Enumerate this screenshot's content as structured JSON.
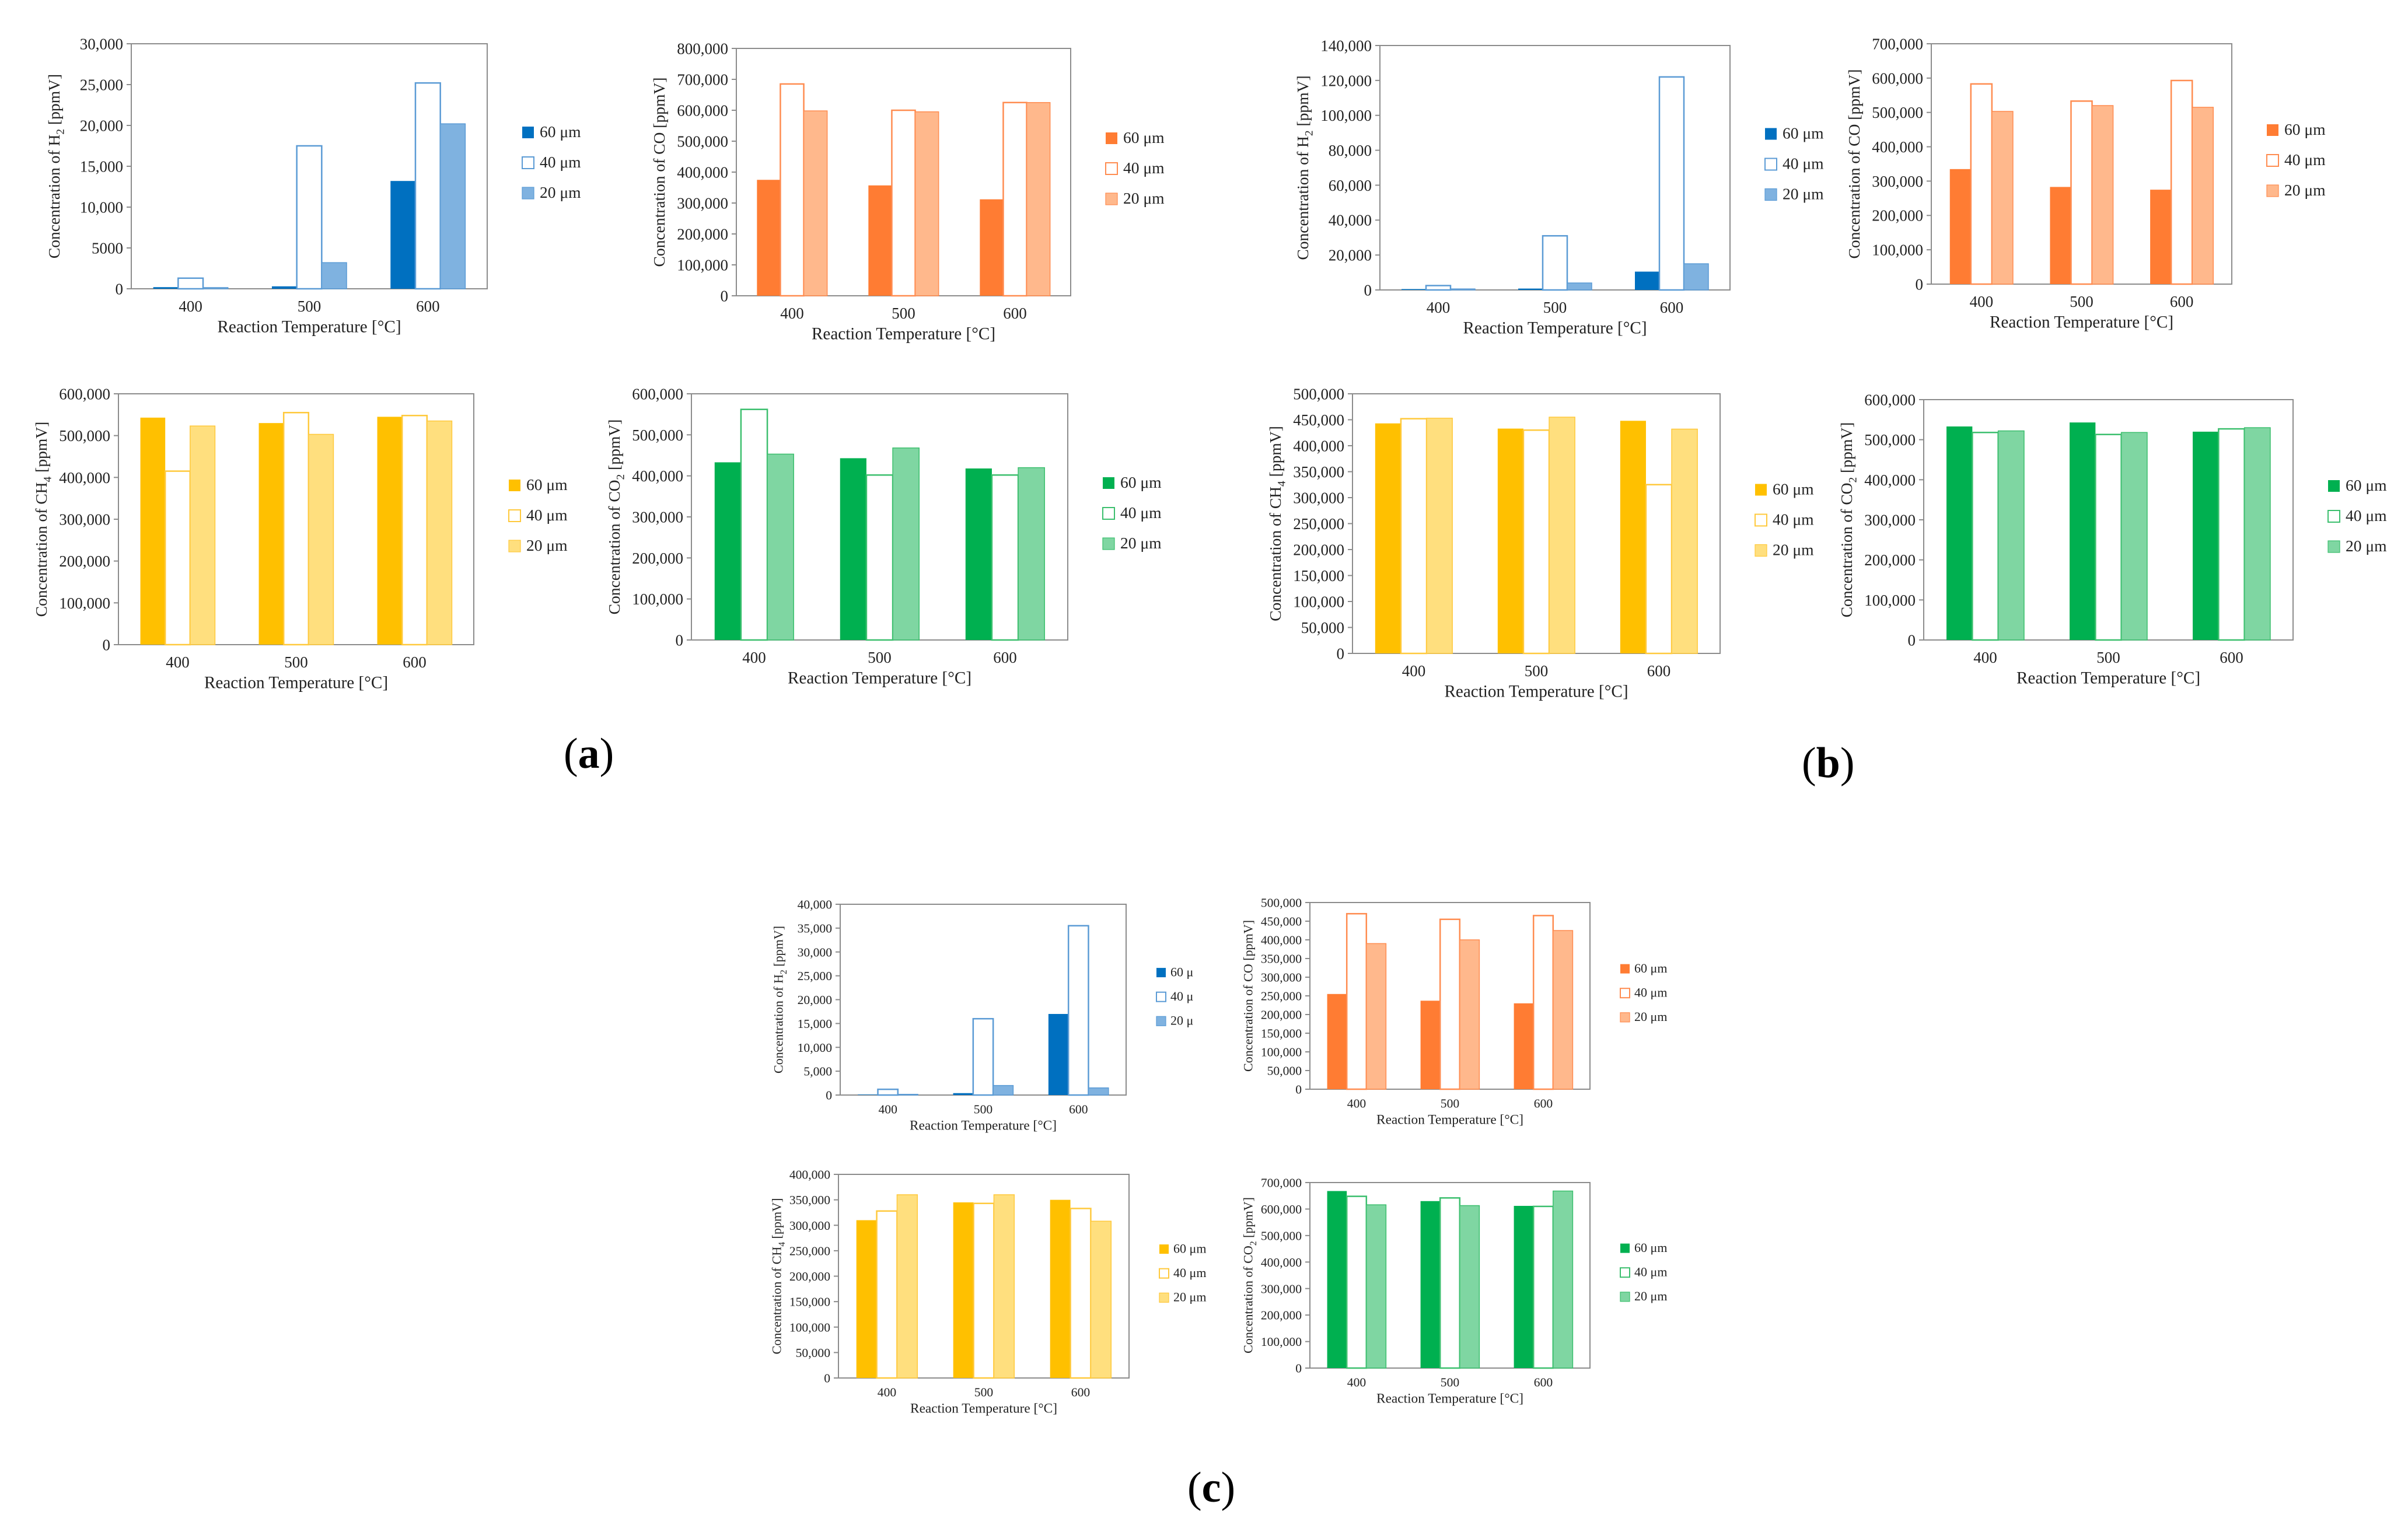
{
  "figure": {
    "panel_labels": [
      {
        "open": "(",
        "letter": "a",
        "close": ")"
      },
      {
        "open": "(",
        "letter": "b",
        "close": ")"
      },
      {
        "open": "(",
        "letter": "c",
        "close": ")"
      }
    ]
  },
  "colors": {
    "h2": {
      "dark": "#0070C0",
      "outline": "#5B9BD5",
      "light": "#7FB2E0"
    },
    "co": {
      "dark": "#FF7C33",
      "outline": "#FF8C50",
      "light": "#FFB88C"
    },
    "ch4": {
      "dark": "#FFC000",
      "outline": "#FFC93C",
      "light": "#FFDF7E"
    },
    "co2": {
      "dark": "#00B050",
      "outline": "#3CBF6E",
      "light": "#7FD6A2"
    }
  },
  "chart_data": [
    {
      "id": "a-h2",
      "panel": "a",
      "gas": "h2",
      "type": "bar",
      "ylabel_pre": "Concentration of H",
      "ylabel_sub": "2",
      "ylabel_post": " [ppmV]",
      "xlabel": "Reaction Temperature [°C]",
      "categories": [
        "400",
        "500",
        "600"
      ],
      "ylim": [
        0,
        30000
      ],
      "yticks": [
        "0",
        "5000",
        "10,000",
        "15,000",
        "20,000",
        "25,000",
        "30,000"
      ],
      "series": [
        {
          "name": "60 μm",
          "values": [
            200,
            300,
            13200
          ]
        },
        {
          "name": "40 μm",
          "values": [
            1300,
            17500,
            25200
          ]
        },
        {
          "name": "20 μm",
          "values": [
            150,
            3200,
            20200
          ]
        }
      ]
    },
    {
      "id": "a-co",
      "panel": "a",
      "gas": "co",
      "type": "bar",
      "ylabel_pre": "Concentration of CO",
      "ylabel_sub": "",
      "ylabel_post": " [ppmV]",
      "xlabel": "Reaction Temperature [°C]",
      "categories": [
        "400",
        "500",
        "600"
      ],
      "ylim": [
        0,
        800000
      ],
      "yticks": [
        "0",
        "100,000",
        "200,000",
        "300,000",
        "400,000",
        "500,000",
        "600,000",
        "700,000",
        "800,000"
      ],
      "series": [
        {
          "name": "60 μm",
          "values": [
            375000,
            357000,
            312000
          ]
        },
        {
          "name": "40 μm",
          "values": [
            685000,
            600000,
            625000
          ]
        },
        {
          "name": "20 μm",
          "values": [
            598000,
            595000,
            625000
          ]
        }
      ]
    },
    {
      "id": "a-ch4",
      "panel": "a",
      "gas": "ch4",
      "type": "bar",
      "ylabel_pre": "Concentration of CH",
      "ylabel_sub": "4",
      "ylabel_post": " [ppmV]",
      "xlabel": "Reaction Temperature [°C]",
      "categories": [
        "400",
        "500",
        "600"
      ],
      "ylim": [
        0,
        600000
      ],
      "yticks": [
        "0",
        "100,000",
        "200,000",
        "300,000",
        "400,000",
        "500,000",
        "600,000"
      ],
      "series": [
        {
          "name": "60 μm",
          "values": [
            543000,
            530000,
            545000
          ]
        },
        {
          "name": "40 μm",
          "values": [
            415000,
            555000,
            548000
          ]
        },
        {
          "name": "20 μm",
          "values": [
            523000,
            503000,
            535000
          ]
        }
      ]
    },
    {
      "id": "a-co2",
      "panel": "a",
      "gas": "co2",
      "type": "bar",
      "ylabel_pre": "Concentration of CO",
      "ylabel_sub": "2",
      "ylabel_post": " [ppmV]",
      "xlabel": "Reaction Temperature [°C]",
      "categories": [
        "400",
        "500",
        "600"
      ],
      "ylim": [
        0,
        600000
      ],
      "yticks": [
        "0",
        "100,000",
        "200,000",
        "300,000",
        "400,000",
        "500,000",
        "600,000"
      ],
      "series": [
        {
          "name": "60 μm",
          "values": [
            433000,
            443000,
            418000
          ]
        },
        {
          "name": "40 μm",
          "values": [
            562000,
            402000,
            402000
          ]
        },
        {
          "name": "20 μm",
          "values": [
            453000,
            468000,
            420000
          ]
        }
      ]
    },
    {
      "id": "b-h2",
      "panel": "b",
      "gas": "h2",
      "type": "bar",
      "ylabel_pre": "Concentration of H",
      "ylabel_sub": "2",
      "ylabel_post": " [ppmV]",
      "xlabel": "Reaction Temperature [°C]",
      "categories": [
        "400",
        "500",
        "600"
      ],
      "ylim": [
        0,
        140000
      ],
      "yticks": [
        "0",
        "20,000",
        "40,000",
        "60,000",
        "80,000",
        "100,000",
        "120,000",
        "140,000"
      ],
      "series": [
        {
          "name": "60 μm",
          "values": [
            500,
            800,
            10500
          ]
        },
        {
          "name": "40 μm",
          "values": [
            2500,
            31000,
            122000
          ]
        },
        {
          "name": "20 μm",
          "values": [
            600,
            4000,
            15000
          ]
        }
      ]
    },
    {
      "id": "b-co",
      "panel": "b",
      "gas": "co",
      "type": "bar",
      "ylabel_pre": "Concentration of CO",
      "ylabel_sub": "",
      "ylabel_post": " [ppmV]",
      "xlabel": "Reaction Temperature [°C]",
      "categories": [
        "400",
        "500",
        "600"
      ],
      "ylim": [
        0,
        700000
      ],
      "yticks": [
        "0",
        "100,000",
        "200,000",
        "300,000",
        "400,000",
        "500,000",
        "600,000",
        "700,000"
      ],
      "series": [
        {
          "name": "60 μm",
          "values": [
            335000,
            283000,
            275000
          ]
        },
        {
          "name": "40 μm",
          "values": [
            583000,
            533000,
            593000
          ]
        },
        {
          "name": "20 μm",
          "values": [
            503000,
            520000,
            515000
          ]
        }
      ]
    },
    {
      "id": "b-ch4",
      "panel": "b",
      "gas": "ch4",
      "type": "bar",
      "ylabel_pre": "Concentration of CH",
      "ylabel_sub": "4",
      "ylabel_post": " [ppmV]",
      "xlabel": "Reaction Temperature [°C]",
      "categories": [
        "400",
        "500",
        "600"
      ],
      "ylim": [
        0,
        500000
      ],
      "yticks": [
        "0",
        "50,000",
        "100,000",
        "150,000",
        "200,000",
        "250,000",
        "300,000",
        "350,000",
        "400,000",
        "450,000",
        "500,000"
      ],
      "series": [
        {
          "name": "60 μm",
          "values": [
            443000,
            433000,
            448000
          ]
        },
        {
          "name": "40 μm",
          "values": [
            452000,
            430000,
            325000
          ]
        },
        {
          "name": "20 μm",
          "values": [
            453000,
            455000,
            432000
          ]
        }
      ]
    },
    {
      "id": "b-co2",
      "panel": "b",
      "gas": "co2",
      "type": "bar",
      "ylabel_pre": "Concentration of CO",
      "ylabel_sub": "2",
      "ylabel_post": " [ppmV]",
      "xlabel": "Reaction Temperature [°C]",
      "categories": [
        "400",
        "500",
        "600"
      ],
      "ylim": [
        0,
        600000
      ],
      "yticks": [
        "0",
        "100,000",
        "200,000",
        "300,000",
        "400,000",
        "500,000",
        "600,000"
      ],
      "series": [
        {
          "name": "60 μm",
          "values": [
            533000,
            543000,
            520000
          ]
        },
        {
          "name": "40 μm",
          "values": [
            518000,
            513000,
            527000
          ]
        },
        {
          "name": "20 μm",
          "values": [
            522000,
            518000,
            530000
          ]
        }
      ]
    },
    {
      "id": "c-h2",
      "panel": "c",
      "gas": "h2",
      "type": "bar",
      "ylabel_pre": "Concentration of H",
      "ylabel_sub": "2",
      "ylabel_post": " [ppmV]",
      "xlabel": "Reaction Temperature [°C]",
      "categories": [
        "400",
        "500",
        "600"
      ],
      "ylim": [
        0,
        40000
      ],
      "yticks": [
        "0",
        "5,000",
        "10,000",
        "15,000",
        "20,000",
        "25,000",
        "30,000",
        "35,000",
        "40,000"
      ],
      "series": [
        {
          "name": "60 μ",
          "values": [
            100,
            400,
            17000
          ]
        },
        {
          "name": "40 μ",
          "values": [
            1200,
            16000,
            35500
          ]
        },
        {
          "name": "20 μ",
          "values": [
            150,
            2000,
            1500
          ]
        }
      ]
    },
    {
      "id": "c-co",
      "panel": "c",
      "gas": "co",
      "type": "bar",
      "ylabel_pre": "Concentration of CO",
      "ylabel_sub": "",
      "ylabel_post": " [ppmV]",
      "xlabel": "Reaction Temperature [°C]",
      "categories": [
        "400",
        "500",
        "600"
      ],
      "ylim": [
        0,
        500000
      ],
      "yticks": [
        "0",
        "50,000",
        "100,000",
        "150,000",
        "200,000",
        "250,000",
        "300,000",
        "350,000",
        "400,000",
        "450,000",
        "500,000"
      ],
      "series": [
        {
          "name": "60 μm",
          "values": [
            255000,
            237000,
            230000
          ]
        },
        {
          "name": "40 μm",
          "values": [
            470000,
            455000,
            465000
          ]
        },
        {
          "name": "20 μm",
          "values": [
            390000,
            400000,
            425000
          ]
        }
      ]
    },
    {
      "id": "c-ch4",
      "panel": "c",
      "gas": "ch4",
      "type": "bar",
      "ylabel_pre": "Concentration of CH",
      "ylabel_sub": "4",
      "ylabel_post": " [ppmV]",
      "xlabel": "Reaction Temperature [°C]",
      "categories": [
        "400",
        "500",
        "600"
      ],
      "ylim": [
        0,
        400000
      ],
      "yticks": [
        "0",
        "50,000",
        "100,000",
        "150,000",
        "200,000",
        "250,000",
        "300,000",
        "350,000",
        "400,000"
      ],
      "series": [
        {
          "name": "60 μm",
          "values": [
            310000,
            345000,
            350000
          ]
        },
        {
          "name": "40 μm",
          "values": [
            328000,
            343000,
            333000
          ]
        },
        {
          "name": "20 μm",
          "values": [
            360000,
            360000,
            308000
          ]
        }
      ]
    },
    {
      "id": "c-co2",
      "panel": "c",
      "gas": "co2",
      "type": "bar",
      "ylabel_pre": "Concentration of CO",
      "ylabel_sub": "2",
      "ylabel_post": " [ppmV]",
      "xlabel": "Reaction Temperature [°C]",
      "categories": [
        "400",
        "500",
        "600"
      ],
      "ylim": [
        0,
        700000
      ],
      "yticks": [
        "0",
        "100,000",
        "200,000",
        "300,000",
        "400,000",
        "500,000",
        "600,000",
        "700,000"
      ],
      "series": [
        {
          "name": "60 μm",
          "values": [
            668000,
            630000,
            612000
          ]
        },
        {
          "name": "40 μm",
          "values": [
            648000,
            642000,
            610000
          ]
        },
        {
          "name": "20 μm",
          "values": [
            616000,
            613000,
            668000
          ]
        }
      ]
    }
  ]
}
